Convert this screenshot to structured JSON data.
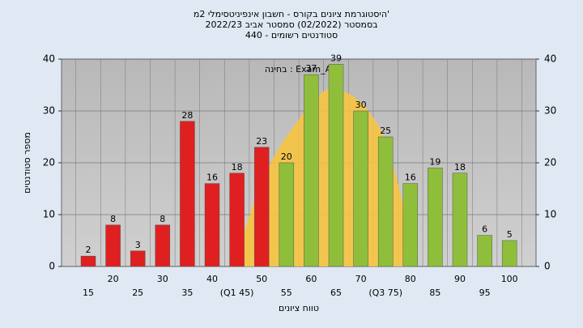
{
  "chart_data": {
    "type": "bar",
    "title": [
      "היסטוגרמת ציונים בקורס - חשבון אינפיניטסימלי 2מ'",
      "בסמסטר (02/2022) סמסטר אביב 2022/23",
      "סטודנטים רשומים - 440"
    ],
    "annotation": "בחינה : Exam_A",
    "x_label": "טווח ציונים",
    "y_label": "מספר סטודנטים",
    "categories": [
      "15",
      "20",
      "25",
      "30",
      "35",
      "40",
      "(Q1 45)",
      "50",
      "55",
      "60",
      "65",
      "70",
      "(Q3 75)",
      "80",
      "85",
      "90",
      "95",
      "100"
    ],
    "values": [
      2,
      8,
      3,
      8,
      28,
      16,
      18,
      23,
      20,
      37,
      39,
      30,
      25,
      16,
      19,
      18,
      6,
      5
    ],
    "bar_colors": [
      "#e02020",
      "#e02020",
      "#e02020",
      "#e02020",
      "#e02020",
      "#e02020",
      "#e02020",
      "#e02020",
      "#8fbf3a",
      "#8fbf3a",
      "#8fbf3a",
      "#8fbf3a",
      "#8fbf3a",
      "#8fbf3a",
      "#8fbf3a",
      "#8fbf3a",
      "#8fbf3a",
      "#8fbf3a"
    ],
    "ylim": [
      0,
      40
    ],
    "yticks": [
      0,
      10,
      20,
      30,
      40
    ],
    "y2lim": [
      0,
      40
    ],
    "y2ticks": [
      0,
      10,
      20,
      30,
      40
    ],
    "grid": true
  }
}
